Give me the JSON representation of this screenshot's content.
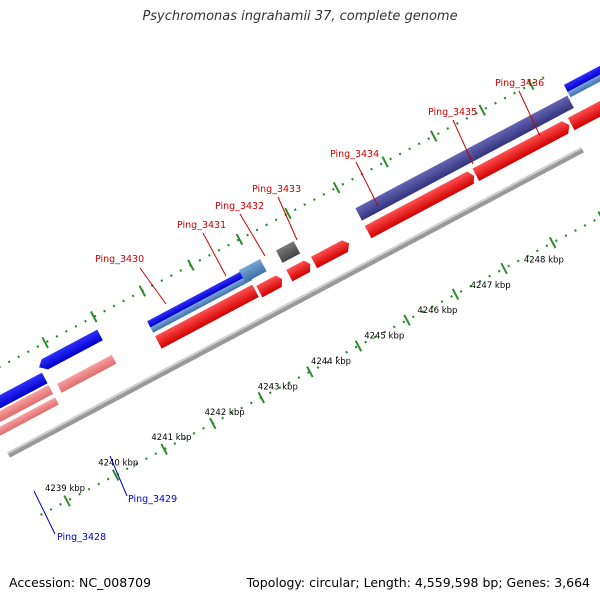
{
  "title": "Psychromonas ingrahamii 37, complete genome",
  "footer": {
    "accession": "Accession: NC_008709",
    "topology": "Topology: circular; Length: 4,559,598 bp; Genes: 3,664"
  },
  "colors": {
    "label_top": "#cc0000",
    "label_bottom": "#0000cc",
    "backbone": "#999999",
    "ticks": "#2e8b2e"
  },
  "scale_labels": [
    "4239 kbp",
    "4240 kbp",
    "4241 kbp",
    "4242 kbp",
    "4243 kbp",
    "4244 kbp",
    "4245 kbp",
    "4246 kbp",
    "4247 kbp",
    "4248 kbp"
  ],
  "gene_labels_top": [
    "Ping_3430",
    "Ping_3431",
    "Ping_3432",
    "Ping_3433",
    "Ping_3434",
    "Ping_3435",
    "Ping_3436"
  ],
  "gene_labels_bottom": [
    "Ping_3428",
    "Ping_3429"
  ]
}
